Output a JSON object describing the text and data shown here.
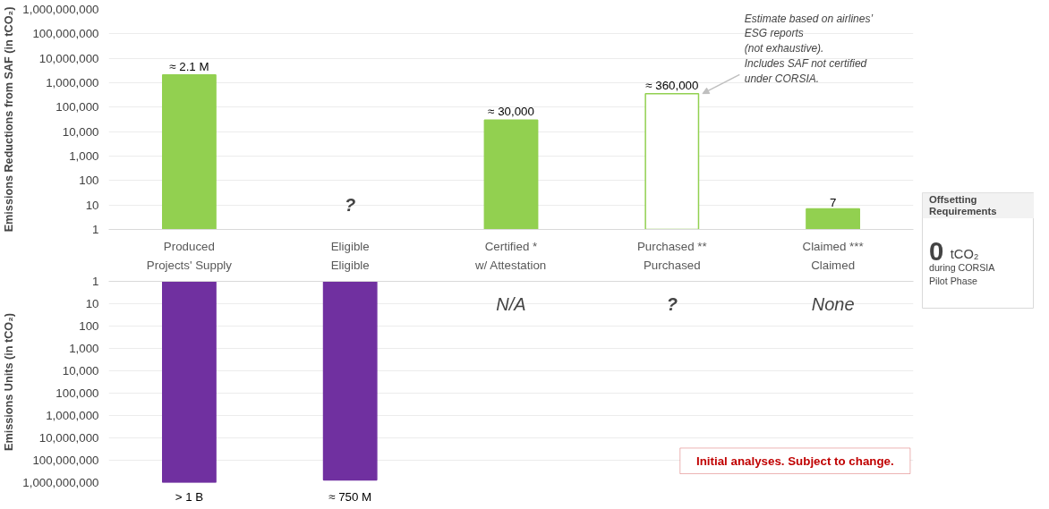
{
  "chart_data": [
    {
      "type": "bar",
      "ylabel": "Emissions Reductions from SAF (in tCO₂)",
      "categories": [
        "Produced",
        "Eligible",
        "Certified *",
        "Purchased **",
        "Claimed ***"
      ],
      "values": [
        2100000,
        null,
        30000,
        360000,
        7
      ],
      "color": "#92d050",
      "colors": [
        "#92d050",
        "#92d050",
        "#92d050",
        "#ffffff",
        "#92d050"
      ],
      "value_labels": [
        "≈ 2.1 M",
        null,
        "≈ 30,000",
        "≈ 360,000",
        "7"
      ],
      "log": true,
      "ylim": [
        1,
        1000000000
      ],
      "yticks": [
        {
          "value": 1,
          "label": "1"
        },
        {
          "value": 10,
          "label": "10"
        },
        {
          "value": 100,
          "label": "100"
        },
        {
          "value": 1000,
          "label": "1,000"
        },
        {
          "value": 10000,
          "label": "10,000"
        },
        {
          "value": 100000,
          "label": "100,000"
        },
        {
          "value": 1000000,
          "label": "1,000,000"
        },
        {
          "value": 10000000,
          "label": "10,000,000"
        },
        {
          "value": 100000000,
          "label": "100,000,000"
        },
        {
          "value": 1000000000,
          "label": "1,000,000,000"
        }
      ],
      "grid": "y",
      "annotations": [
        "?",
        "Estimate based on airlines’\nESG reports\n(not exhaustive).\nIncludes SAF not certified\nunder CORSIA."
      ]
    },
    {
      "type": "bar",
      "ylabel": "Emissions Units (in tCO₂)",
      "categories": [
        "Projects' Supply",
        "Eligible",
        "w/ Attestation",
        "Purchased",
        "Claimed"
      ],
      "values": [
        1000000000,
        750000000,
        null,
        null,
        null
      ],
      "color": "#7030a0",
      "value_labels": [
        "> 1 B",
        "≈ 750 M",
        null,
        null,
        null
      ],
      "log": true,
      "ylim": [
        1000000000,
        1
      ],
      "yticks": [
        {
          "value": 1,
          "label": "1"
        },
        {
          "value": 10,
          "label": "10"
        },
        {
          "value": 100,
          "label": "100"
        },
        {
          "value": 1000,
          "label": "1,000"
        },
        {
          "value": 10000,
          "label": "10,000"
        },
        {
          "value": 100000,
          "label": "100,000"
        },
        {
          "value": 1000000,
          "label": "1,000,000"
        },
        {
          "value": 10000000,
          "label": "10,000,000"
        },
        {
          "value": 100000000,
          "label": "100,000,000"
        },
        {
          "value": 1000000000,
          "label": "1,000,000,000"
        }
      ],
      "grid": "y",
      "annotations": [
        "N/A",
        "?",
        "None",
        "Initial analyses. Subject to change."
      ]
    },
    {
      "type": "other",
      "title": "Offsetting Requirements",
      "annotations": [
        "0",
        "tCO₂",
        "during CORSIA\nPilot Phase"
      ]
    }
  ]
}
